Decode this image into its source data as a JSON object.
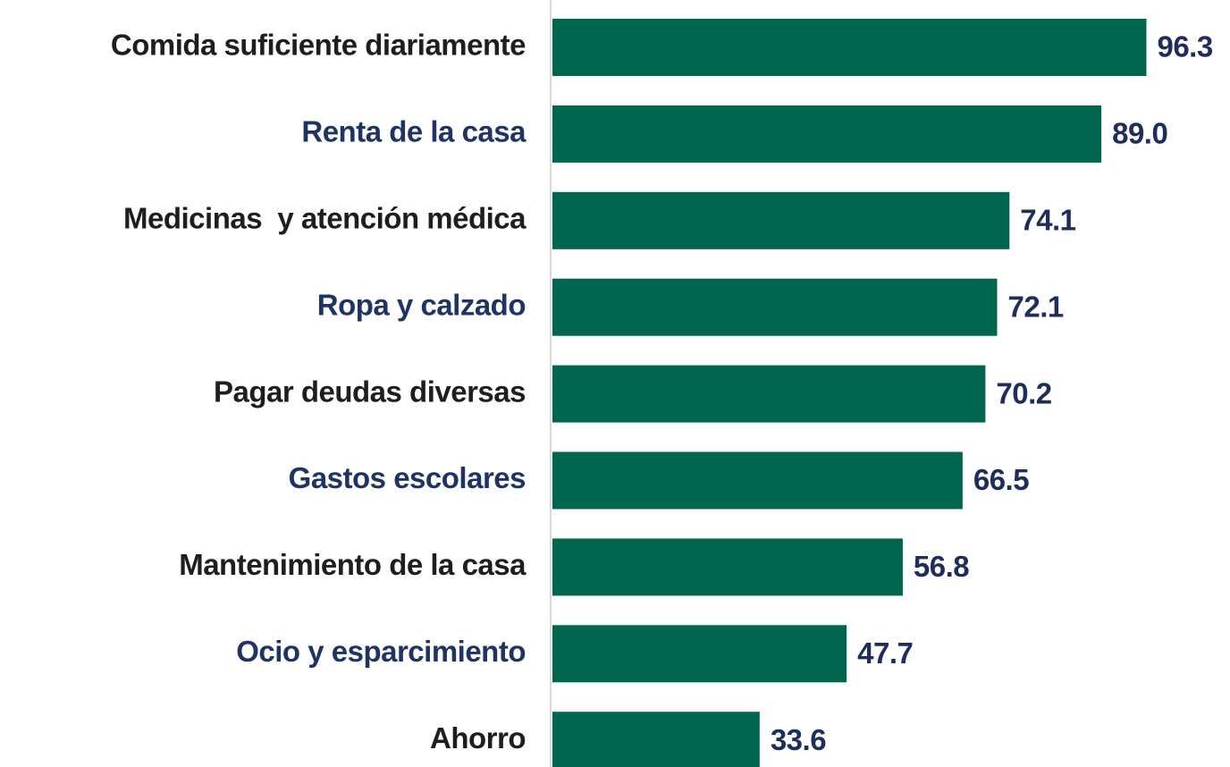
{
  "chart_data": {
    "type": "hbar",
    "categories": [
      "Comida suficiente diariamente",
      "Renta de la casa",
      "Medicinas  y atención médica",
      "Ropa y calzado",
      "Pagar deudas diversas",
      "Gastos escolares",
      "Mantenimiento de la casa",
      "Ocio y esparcimiento",
      "Ahorro"
    ],
    "category_colors": [
      "#1e1e1e",
      "#1f3464",
      "#1e1e1e",
      "#1f3464",
      "#1e1e1e",
      "#1f3464",
      "#1e1e1e",
      "#1f3464",
      "#1e1e1e"
    ],
    "values": [
      96.3,
      89.0,
      74.1,
      72.1,
      70.2,
      66.5,
      56.8,
      47.7,
      33.6
    ],
    "value_labels": [
      "96.3",
      "89.0",
      "74.1",
      "72.1",
      "70.2",
      "66.5",
      "56.8",
      "47.7",
      "33.6"
    ],
    "value_label_color": "#1f2d5c",
    "color": "#006650",
    "xlim": [
      0,
      100
    ]
  }
}
